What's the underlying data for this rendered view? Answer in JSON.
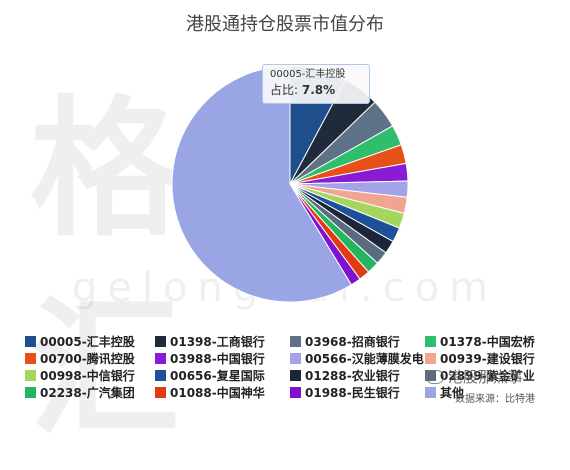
{
  "watermark": {
    "text": "格隆汇",
    "url": "gelonghui.com"
  },
  "tooltip": {
    "name": "00005-汇丰控股",
    "label": "占比:",
    "value": "7.8%"
  },
  "wechat": {
    "text": "港股那点事"
  },
  "source": "数据来源：比特港",
  "chart_data": {
    "type": "pie",
    "title": "港股通持仓股票市值分布",
    "legend": "bottom",
    "slices": [
      {
        "label": "00005-汇丰控股",
        "value": 7.8,
        "color": "#1f4e8c"
      },
      {
        "label": "01398-工商银行",
        "value": 5.0,
        "color": "#1f2a3a"
      },
      {
        "label": "03968-招商银行",
        "value": 4.0,
        "color": "#5e7287"
      },
      {
        "label": "01378-中国宏桥",
        "value": 2.8,
        "color": "#2fbf6c"
      },
      {
        "label": "00700-腾讯控股",
        "value": 2.6,
        "color": "#e8501a"
      },
      {
        "label": "03988-中国银行",
        "value": 2.4,
        "color": "#8a1bd4"
      },
      {
        "label": "00566-汉能薄膜发电",
        "value": 2.2,
        "color": "#a3a3e8"
      },
      {
        "label": "00939-建设银行",
        "value": 2.2,
        "color": "#f0a590"
      },
      {
        "label": "00998-中信银行",
        "value": 2.1,
        "color": "#a4d65e"
      },
      {
        "label": "00656-复星国际",
        "value": 2.0,
        "color": "#1d4f9a"
      },
      {
        "label": "01288-农业银行",
        "value": 1.8,
        "color": "#1b2638"
      },
      {
        "label": "02899-紫金矿业",
        "value": 1.8,
        "color": "#5a6c80"
      },
      {
        "label": "02238-广汽集团",
        "value": 1.7,
        "color": "#25b560"
      },
      {
        "label": "01088-中国神华",
        "value": 1.5,
        "color": "#e23a12"
      },
      {
        "label": "01988-民生银行",
        "value": 1.4,
        "color": "#7f10cf"
      },
      {
        "label": "其他",
        "value": 58.7,
        "color": "#9aa5e6"
      }
    ]
  }
}
